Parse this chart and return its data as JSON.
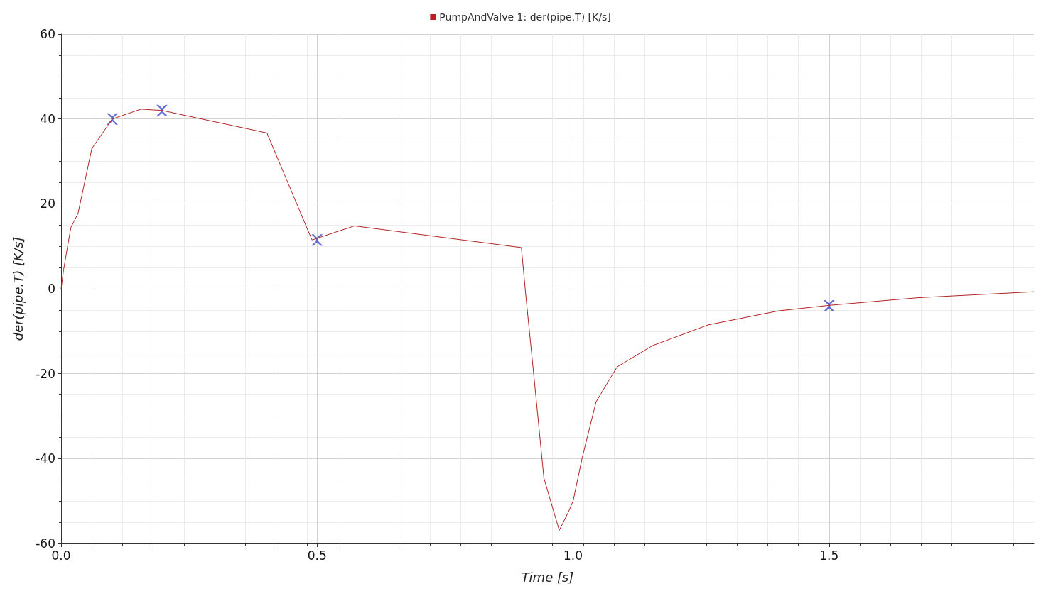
{
  "chart_data": {
    "type": "line",
    "xlabel": "Time [s]",
    "ylabel": "der(pipe.T) [K/s]",
    "xlim": [
      0,
      1.9
    ],
    "ylim": [
      -60,
      60
    ],
    "xticks": [
      {
        "value": 0,
        "label": "0.0"
      },
      {
        "value": 0.5,
        "label": "0.5"
      },
      {
        "value": 1,
        "label": "1.0"
      },
      {
        "value": 1.5,
        "label": "1.5"
      }
    ],
    "yticks": [
      -60,
      -40,
      -20,
      0,
      20,
      40,
      60
    ],
    "grid": true,
    "legend": "top",
    "marker": "none",
    "line_style": "solid",
    "series": [
      {
        "name": "PumpAndValve 1: der(pipe.T) [K/s]",
        "color": "#b22222",
        "x": [
          0,
          0.005,
          0.012,
          0.019,
          0.033,
          0.06,
          0.1,
          0.156,
          0.197,
          0.402,
          0.49,
          0.573,
          0.899,
          0.908,
          0.923,
          0.943,
          0.973,
          0.99,
          1.0,
          1.018,
          1.045,
          1.086,
          1.155,
          1.264,
          1.401,
          1.5,
          1.674,
          1.9
        ],
        "values": [
          0,
          4.6,
          9.5,
          14.4,
          17.7,
          33,
          40,
          42.3,
          42,
          36.7,
          11.5,
          14.8,
          9.7,
          -2,
          -20,
          -44.6,
          -56.9,
          -52.8,
          -50,
          -39.7,
          -26.6,
          -18.4,
          -13.4,
          -8.5,
          -5.2,
          -3.9,
          -2.1,
          -0.7
        ]
      },
      {
        "type": "scatter",
        "marker": "cross",
        "color": "#3f48cc",
        "x": [
          0.1,
          0.197,
          0.5,
          1.5
        ],
        "values": [
          40,
          42,
          11.5,
          -4
        ]
      }
    ]
  }
}
